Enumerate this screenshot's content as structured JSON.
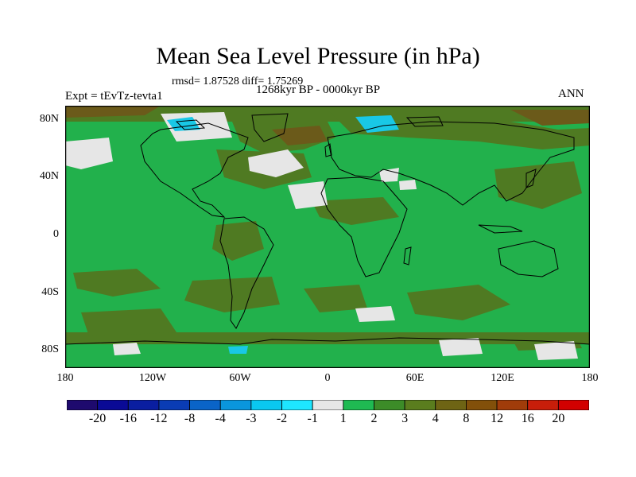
{
  "title": "Mean Sea Level Pressure (in hPa)",
  "stats": "rmsd= 1.87528  diff= 1.75269",
  "period": "1268kyr BP - 0000kyr BP",
  "experiment": "Expt = tEvTz-tevta1",
  "season": "ANN",
  "lat_labels": [
    "80N",
    "40N",
    "0",
    "40S",
    "80S"
  ],
  "lon_labels": [
    "180",
    "120W",
    "60W",
    "0",
    "60E",
    "120E",
    "180"
  ],
  "colorbar": {
    "labels": [
      "-20",
      "-16",
      "-12",
      "-8",
      "-4",
      "-3",
      "-2",
      "-1",
      "1",
      "2",
      "3",
      "4",
      "8",
      "12",
      "16",
      "20"
    ],
    "colors": [
      "#1e0a6e",
      "#0a0a96",
      "#0a1ea0",
      "#0a3cb4",
      "#0a64c8",
      "#0a96dc",
      "#0ac8f0",
      "#1ee6ff",
      "#e6e6e6",
      "#1fba52",
      "#3c8c28",
      "#5a7d1e",
      "#6e6414",
      "#82500a",
      "#a03c0a",
      "#c81e0a",
      "#d20000"
    ]
  },
  "legend_colors": {
    "main_positive": "#22b14c",
    "positive_2": "#3f7f1f",
    "positive_3": "#5f6f1d",
    "near_zero": "#e6e6e6",
    "negative": "#19c8e6",
    "land_outline": "#000000"
  }
}
